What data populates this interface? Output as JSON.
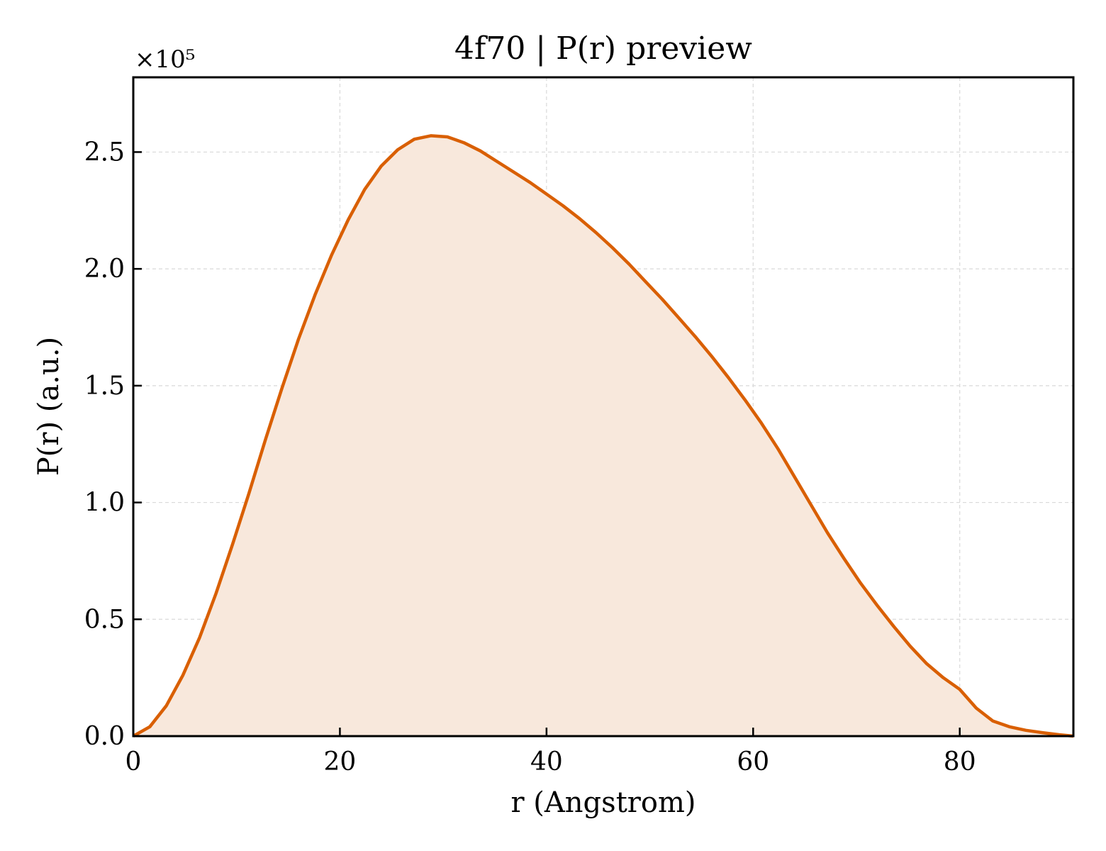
{
  "chart_data": {
    "type": "area",
    "title": "4f70 | P(r) preview",
    "xlabel": "r (Angstrom)",
    "ylabel": "P(r) (a.u.)",
    "y_multiplier_label": "×10⁵",
    "y_multiplier": 100000,
    "xlim": [
      0,
      91
    ],
    "ylim": [
      0,
      2.82
    ],
    "x_ticks": [
      0,
      20,
      40,
      60,
      80
    ],
    "x_tick_labels": [
      "0",
      "20",
      "40",
      "60",
      "80"
    ],
    "y_ticks": [
      0,
      0.5,
      1.0,
      1.5,
      2.0,
      2.5
    ],
    "y_tick_labels": [
      "0.0",
      "0.5",
      "1.0",
      "1.5",
      "2.0",
      "2.5"
    ],
    "grid": true,
    "line_color": "#d95f02",
    "fill_color": "#f8e8dc",
    "series": [
      {
        "x": [
          0,
          1.6,
          3.2,
          4.8,
          6.4,
          8.0,
          9.6,
          11.2,
          12.8,
          14.4,
          16.0,
          17.6,
          19.2,
          20.8,
          22.4,
          24.0,
          25.6,
          27.2,
          28.8,
          30.4,
          32.0,
          33.6,
          35.2,
          36.8,
          38.4,
          40.0,
          41.6,
          43.2,
          44.8,
          46.4,
          48.0,
          49.6,
          51.2,
          52.8,
          54.4,
          56.0,
          57.6,
          59.2,
          60.8,
          62.4,
          64.0,
          65.6,
          67.2,
          68.8,
          70.4,
          72.0,
          73.6,
          75.2,
          76.8,
          78.4,
          80.0,
          81.6,
          83.2,
          84.8,
          86.4,
          88.0,
          89.6,
          91.0
        ],
        "values": [
          0.0,
          0.04,
          0.13,
          0.26,
          0.42,
          0.61,
          0.82,
          1.04,
          1.27,
          1.49,
          1.7,
          1.89,
          2.06,
          2.21,
          2.34,
          2.44,
          2.51,
          2.555,
          2.57,
          2.565,
          2.54,
          2.505,
          2.46,
          2.415,
          2.37,
          2.32,
          2.27,
          2.215,
          2.155,
          2.09,
          2.02,
          1.945,
          1.87,
          1.79,
          1.71,
          1.625,
          1.535,
          1.44,
          1.34,
          1.23,
          1.11,
          0.99,
          0.87,
          0.76,
          0.655,
          0.56,
          0.47,
          0.385,
          0.31,
          0.25,
          0.2,
          0.12,
          0.065,
          0.04,
          0.025,
          0.015,
          0.006,
          0.0
        ]
      }
    ]
  }
}
